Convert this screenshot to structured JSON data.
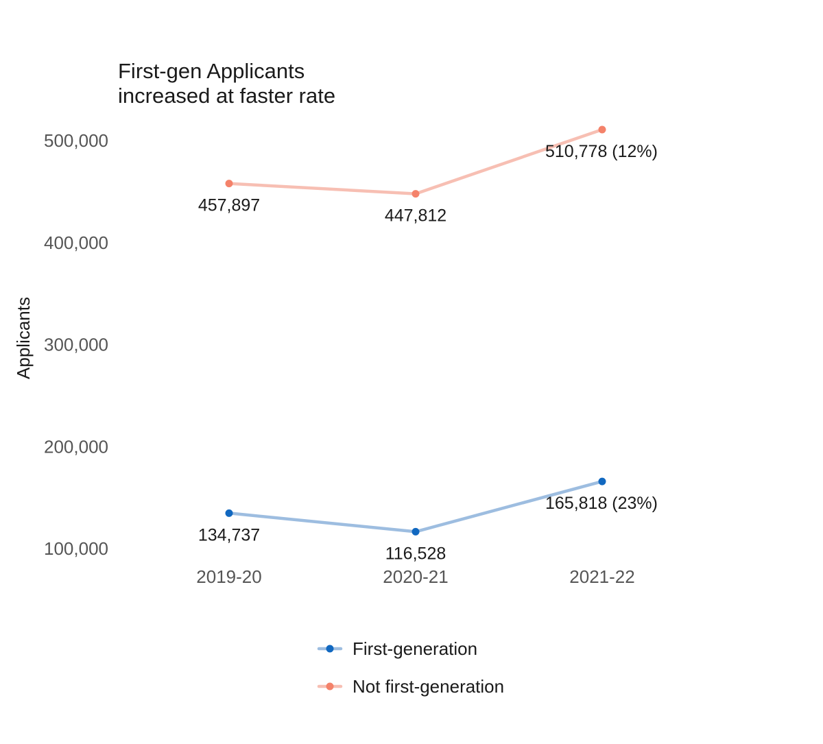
{
  "chart_data": {
    "type": "line",
    "title_lines": [
      "First-gen Applicants",
      "increased at faster rate"
    ],
    "xlabel": "",
    "ylabel": "Applicants",
    "categories": [
      "2019-20",
      "2020-21",
      "2021-22"
    ],
    "yticks": [
      100000,
      200000,
      300000,
      400000,
      500000
    ],
    "ytick_labels": [
      "100,000",
      "200,000",
      "300,000",
      "400,000",
      "500,000"
    ],
    "grid": false,
    "legend_position": "bottom",
    "series": [
      {
        "name": "Not first-generation",
        "values": [
          457897,
          447812,
          510778
        ],
        "labels": [
          "457,897",
          "447,812",
          "510,778 (12%)"
        ],
        "line_color": "#f7bfb3",
        "point_color": "#f4826a"
      },
      {
        "name": "First-generation",
        "values": [
          134737,
          116528,
          165818
        ],
        "labels": [
          "134,737",
          "116,528",
          "165,818 (23%)"
        ],
        "line_color": "#9dbde0",
        "point_color": "#1168c0"
      }
    ]
  }
}
